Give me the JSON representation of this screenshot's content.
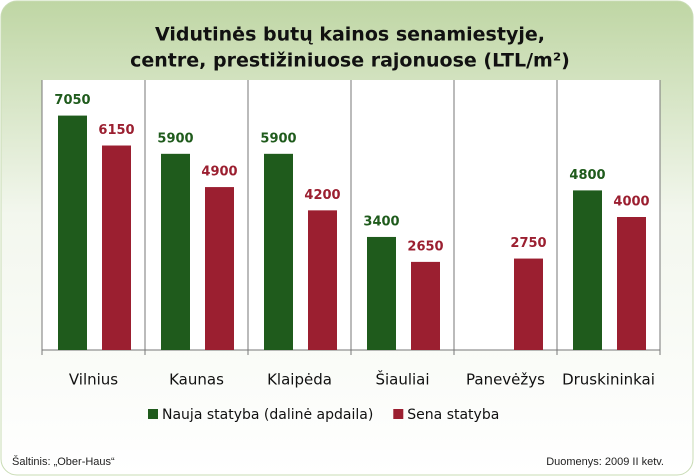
{
  "chart_data": {
    "type": "bar",
    "title": [
      "Vidutinės butų kainos senamiestyje,",
      "centre, prestižiniuose rajonuose (LTL/m²)"
    ],
    "categories": [
      "Vilnius",
      "Kaunas",
      "Klaipėda",
      "Šiauliai",
      "Panevėžys",
      "Druskininkai"
    ],
    "series": [
      {
        "name": "Nauja statyba (dalinė apdaila)",
        "color": "#1f5b1c",
        "values": [
          7050,
          5900,
          5900,
          3400,
          null,
          4800
        ]
      },
      {
        "name": "Sena statyba",
        "color": "#9b1f30",
        "values": [
          6150,
          4900,
          4200,
          2650,
          2750,
          4000
        ]
      }
    ],
    "ylim": [
      0,
      8000
    ],
    "legend": "bottom",
    "source": "Šaltinis: „Ober-Haus“",
    "note": "Duomenys: 2009 II ketv."
  }
}
